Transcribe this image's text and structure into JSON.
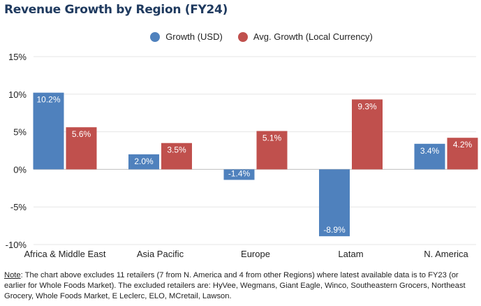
{
  "chart_data": {
    "type": "bar",
    "title": "Revenue Growth by Region (FY24)",
    "categories": [
      "Africa & Middle East",
      "Asia Pacific",
      "Europe",
      "Latam",
      "N. America"
    ],
    "series": [
      {
        "name": "Growth (USD)",
        "color": "#4f81bd",
        "values": [
          10.2,
          2.0,
          -1.4,
          -8.9,
          3.4
        ],
        "labels": [
          "10.2%",
          "2.0%",
          "-1.4%",
          "-8.9%",
          "3.4%"
        ]
      },
      {
        "name": "Avg. Growth (Local Currency)",
        "color": "#c0504d",
        "values": [
          5.6,
          3.5,
          5.1,
          9.3,
          4.2
        ],
        "labels": [
          "5.6%",
          "3.5%",
          "5.1%",
          "9.3%",
          "4.2%"
        ]
      }
    ],
    "ylim": [
      -10,
      15
    ],
    "yticks": [
      15,
      10,
      5,
      0,
      -5,
      -10
    ],
    "ytick_labels": [
      "15%",
      "10%",
      "5%",
      "0%",
      "-5%",
      "-10%"
    ],
    "xlabel": "",
    "ylabel": "",
    "grid": true,
    "legend": "top-center"
  },
  "note": {
    "label": "Note",
    "text": ": The chart above excludes 11 retailers (7 from N. America and 4 from other Regions) where latest available data is to FY23 (or earlier for Whole Foods Market). The excluded retailers are: HyVee, Wegmans, Giant Eagle, Winco, Southeastern Grocers, Northeast Grocery, Whole Foods Market, E Leclerc, ELO, MCretail, Lawson."
  }
}
